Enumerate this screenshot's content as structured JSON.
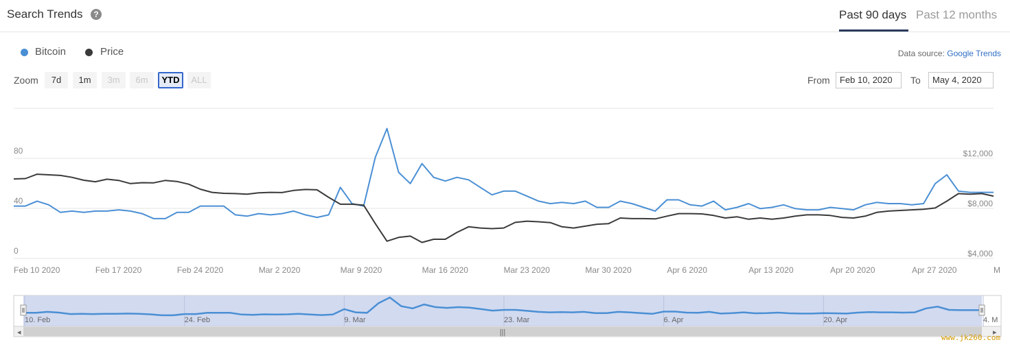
{
  "header": {
    "title": "Search Trends",
    "help_icon": "question-circle-icon",
    "tabs": [
      {
        "label": "Past 90 days",
        "active": true
      },
      {
        "label": "Past 12 months",
        "active": false
      }
    ]
  },
  "legend": [
    {
      "label": "Bitcoin",
      "color": "#4a8fd4"
    },
    {
      "label": "Price",
      "color": "#3a3a3a"
    }
  ],
  "datasource": {
    "prefix": "Data source:",
    "link": "Google Trends"
  },
  "zoom": {
    "label": "Zoom",
    "buttons": [
      {
        "label": "7d",
        "state": "normal"
      },
      {
        "label": "1m",
        "state": "normal"
      },
      {
        "label": "3m",
        "state": "disabled"
      },
      {
        "label": "6m",
        "state": "disabled"
      },
      {
        "label": "YTD",
        "state": "active"
      },
      {
        "label": "ALL",
        "state": "disabled"
      }
    ]
  },
  "range": {
    "from_label": "From",
    "from_value": "Feb 10, 2020",
    "to_label": "To",
    "to_value": "May 4, 2020"
  },
  "watermark": "www.jk260.com",
  "chart_data": {
    "type": "line",
    "x_start": "2020-02-10",
    "x_end": "2020-05-04",
    "x_ticks": [
      "Feb 10 2020",
      "Feb 17 2020",
      "Feb 24 2020",
      "Mar 2 2020",
      "Mar 9 2020",
      "Mar 16 2020",
      "Mar 23 2020",
      "Mar 30 2020",
      "Apr 6 2020",
      "Apr 13 2020",
      "Apr 20 2020",
      "Apr 27 2020",
      "M"
    ],
    "y_left": {
      "ticks": [
        "0",
        "40",
        "80"
      ],
      "range": [
        0,
        80
      ]
    },
    "y_right": {
      "ticks": [
        "$4,000",
        "$8,000",
        "$12,000"
      ],
      "range": [
        4000,
        12000
      ]
    },
    "navigator_ticks": [
      "10. Feb",
      "24. Feb",
      "9. Mar",
      "23. Mar",
      "6. Apr",
      "20. Apr",
      "4. M"
    ],
    "series": [
      {
        "name": "Bitcoin",
        "axis": "left",
        "color": "#4a8fd4",
        "values": [
          38,
          38,
          42,
          39,
          33,
          34,
          33,
          34,
          34,
          35,
          34,
          32,
          28,
          28,
          33,
          33,
          38,
          38,
          38,
          31,
          30,
          32,
          31,
          32,
          34,
          31,
          29,
          31,
          53,
          40,
          38,
          77,
          100,
          65,
          56,
          72,
          61,
          58,
          61,
          59,
          53,
          47,
          50,
          50,
          46,
          42,
          40,
          41,
          40,
          42,
          37,
          37,
          42,
          40,
          37,
          34,
          43,
          43,
          39,
          38,
          42,
          35,
          37,
          40,
          36,
          37,
          39,
          36,
          35,
          35,
          37,
          36,
          35,
          39,
          41,
          40,
          40,
          39,
          40,
          56,
          63,
          50,
          49,
          49,
          49
        ]
      },
      {
        "name": "Price",
        "axis": "right",
        "color": "#3a3a3a",
        "values": [
          9970,
          10000,
          10350,
          10300,
          10250,
          10100,
          9870,
          9750,
          9950,
          9850,
          9600,
          9670,
          9660,
          9850,
          9770,
          9550,
          9150,
          8900,
          8820,
          8800,
          8750,
          8860,
          8900,
          8880,
          9050,
          9130,
          9100,
          8500,
          7950,
          7950,
          7880,
          6400,
          5000,
          5300,
          5400,
          4900,
          5150,
          5150,
          5700,
          6150,
          6050,
          6000,
          6050,
          6500,
          6600,
          6550,
          6480,
          6150,
          6050,
          6200,
          6350,
          6400,
          6850,
          6800,
          6800,
          6780,
          7000,
          7200,
          7200,
          7180,
          7050,
          6850,
          6950,
          6750,
          6850,
          6750,
          6850,
          7000,
          7100,
          7100,
          7050,
          6900,
          6850,
          7000,
          7300,
          7400,
          7450,
          7500,
          7550,
          7650,
          8200,
          8800,
          8750,
          8800,
          8600
        ]
      }
    ]
  }
}
